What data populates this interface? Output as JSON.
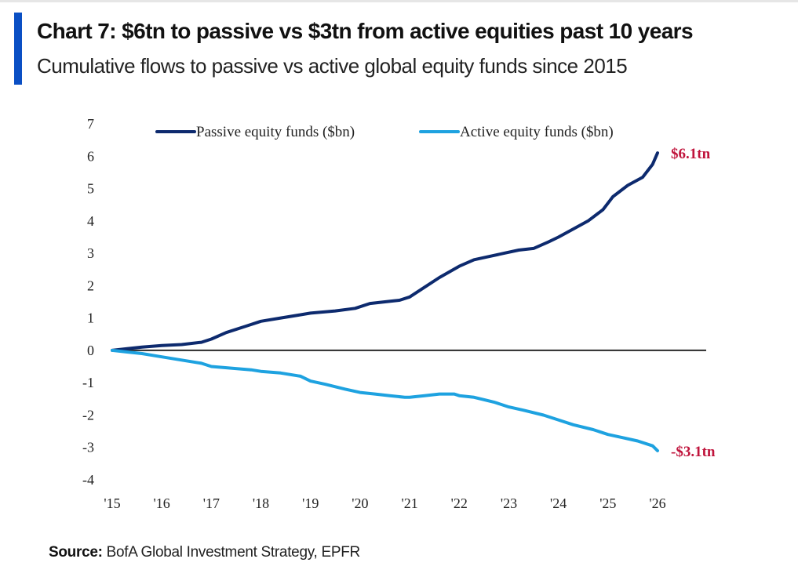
{
  "header": {
    "title": "Chart 7: $6tn to passive vs $3tn from active equities past 10 years",
    "subtitle": "Cumulative flows to passive vs active global equity funds since 2015",
    "accent_color": "#0a4fc4"
  },
  "footer": {
    "source_label": "Source:",
    "source_text": "BofA Global Investment Strategy, EPFR"
  },
  "chart_data": {
    "type": "line",
    "title": "Chart 7: $6tn to passive vs $3tn from active equities past 10 years",
    "subtitle": "Cumulative flows to passive vs active global equity funds since 2015",
    "xlabel": "",
    "ylabel": "",
    "xlim": [
      2015,
      2026
    ],
    "ylim": [
      -4,
      7
    ],
    "x_ticks": [
      "'15",
      "'16",
      "'17",
      "'18",
      "'19",
      "'20",
      "'21",
      "'22",
      "'23",
      "'24",
      "'25",
      "'26"
    ],
    "y_ticks": [
      "7",
      "6",
      "5",
      "4",
      "3",
      "2",
      "1",
      "0",
      "-1",
      "-2",
      "-3",
      "-4"
    ],
    "y_tick_values": [
      7,
      6,
      5,
      4,
      3,
      2,
      1,
      0,
      -1,
      -2,
      -3,
      -4
    ],
    "grid": false,
    "zero_line": true,
    "legend_position": "top",
    "series": [
      {
        "name": "Passive equity funds ($bn)",
        "color": "#0d2a6e",
        "x": [
          2015.0,
          2015.3,
          2015.6,
          2016.0,
          2016.4,
          2016.8,
          2017.0,
          2017.3,
          2017.7,
          2018.0,
          2018.4,
          2018.8,
          2019.0,
          2019.5,
          2019.9,
          2020.2,
          2020.5,
          2020.8,
          2021.0,
          2021.3,
          2021.6,
          2022.0,
          2022.3,
          2022.6,
          2022.9,
          2023.2,
          2023.5,
          2023.8,
          2024.0,
          2024.3,
          2024.6,
          2024.9,
          2025.1,
          2025.4,
          2025.7,
          2025.9,
          2026.0
        ],
        "values": [
          0.0,
          0.05,
          0.1,
          0.15,
          0.18,
          0.25,
          0.35,
          0.55,
          0.75,
          0.9,
          1.0,
          1.1,
          1.15,
          1.22,
          1.3,
          1.45,
          1.5,
          1.55,
          1.65,
          1.95,
          2.25,
          2.6,
          2.8,
          2.9,
          3.0,
          3.1,
          3.15,
          3.35,
          3.5,
          3.75,
          4.0,
          4.35,
          4.75,
          5.1,
          5.35,
          5.75,
          6.1
        ]
      },
      {
        "name": "Active equity funds ($bn)",
        "color": "#1ea2e0",
        "x": [
          2015.0,
          2015.3,
          2015.6,
          2016.0,
          2016.4,
          2016.8,
          2017.0,
          2017.4,
          2017.8,
          2018.0,
          2018.4,
          2018.8,
          2019.0,
          2019.3,
          2019.7,
          2020.0,
          2020.3,
          2020.6,
          2020.9,
          2021.0,
          2021.3,
          2021.6,
          2021.9,
          2022.0,
          2022.3,
          2022.7,
          2023.0,
          2023.3,
          2023.7,
          2024.0,
          2024.3,
          2024.7,
          2025.0,
          2025.3,
          2025.6,
          2025.9,
          2026.0
        ],
        "values": [
          0.0,
          -0.05,
          -0.1,
          -0.2,
          -0.3,
          -0.4,
          -0.5,
          -0.55,
          -0.6,
          -0.65,
          -0.7,
          -0.8,
          -0.95,
          -1.05,
          -1.2,
          -1.3,
          -1.35,
          -1.4,
          -1.45,
          -1.45,
          -1.4,
          -1.35,
          -1.35,
          -1.4,
          -1.45,
          -1.6,
          -1.75,
          -1.85,
          -2.0,
          -2.15,
          -2.3,
          -2.45,
          -2.6,
          -2.7,
          -2.8,
          -2.95,
          -3.1
        ]
      }
    ],
    "annotations": [
      {
        "text": "$6.1tn",
        "series": "Passive equity funds ($bn)",
        "x": 2026,
        "y": 6.1,
        "color": "#c0143c"
      },
      {
        "text": "-$3.1tn",
        "series": "Active equity funds ($bn)",
        "x": 2026,
        "y": -3.1,
        "color": "#c0143c"
      }
    ]
  }
}
